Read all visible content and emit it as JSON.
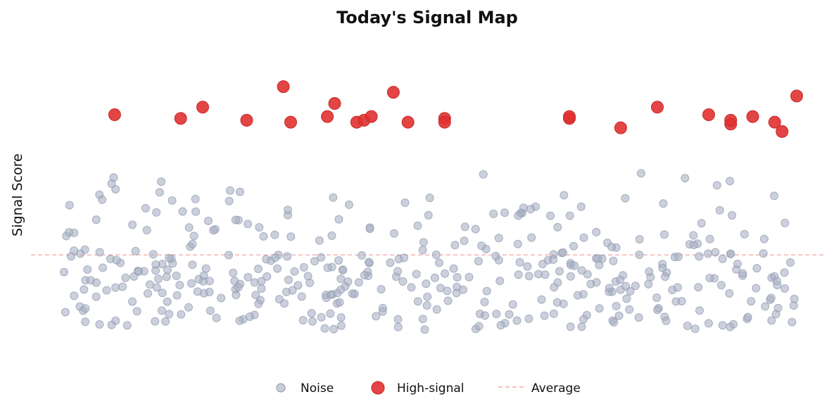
{
  "chart_data": {
    "type": "scatter",
    "title": "Today's Signal Map",
    "xlabel": "",
    "ylabel": "Signal Score",
    "xlim": [
      0,
      1
    ],
    "ylim": [
      -0.5,
      1.1
    ],
    "grid": false,
    "legend_position": "bottom-center",
    "average": 0.0,
    "colors": {
      "noise": "#a9b1c4",
      "high": "#e03131",
      "average": "#ef9a9a"
    },
    "legend": {
      "noise": "Noise",
      "high": "High-signal",
      "average": "Average"
    },
    "series": [
      {
        "name": "High-signal",
        "points": [
          [
            0.07,
            0.75
          ],
          [
            0.16,
            0.73
          ],
          [
            0.19,
            0.79
          ],
          [
            0.25,
            0.72
          ],
          [
            0.3,
            0.9
          ],
          [
            0.31,
            0.71
          ],
          [
            0.36,
            0.74
          ],
          [
            0.37,
            0.81
          ],
          [
            0.4,
            0.71
          ],
          [
            0.41,
            0.72
          ],
          [
            0.42,
            0.74
          ],
          [
            0.45,
            0.87
          ],
          [
            0.47,
            0.71
          ],
          [
            0.52,
            0.73
          ],
          [
            0.52,
            0.71
          ],
          [
            0.69,
            0.73
          ],
          [
            0.69,
            0.74
          ],
          [
            0.76,
            0.68
          ],
          [
            0.81,
            0.79
          ],
          [
            0.88,
            0.75
          ],
          [
            0.91,
            0.7
          ],
          [
            0.91,
            0.72
          ],
          [
            0.94,
            0.74
          ],
          [
            0.97,
            0.71
          ],
          [
            0.98,
            0.66
          ],
          [
            1.0,
            0.85
          ]
        ]
      },
      {
        "name": "Noise",
        "count": 420,
        "seed": 7,
        "range": [
          -0.4,
          0.51
        ]
      }
    ]
  }
}
